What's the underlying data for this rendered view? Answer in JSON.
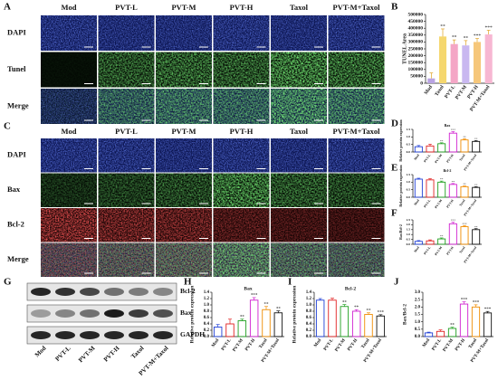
{
  "figure": {
    "panel_labels": [
      "A",
      "B",
      "C",
      "D",
      "E",
      "F",
      "G",
      "H",
      "I",
      "J"
    ],
    "panel_a": {
      "columns": [
        "Mod",
        "PVT-L",
        "PVT-M",
        "PVT-H",
        "Taxol",
        "PVT-M+Taxol"
      ],
      "rows": [
        "DAPI",
        "Tunel",
        "Merge"
      ]
    },
    "panel_c": {
      "columns": [
        "Mod",
        "PVT-L",
        "PVT-M",
        "PVT-H",
        "Taxol",
        "PVT-M+Taxol"
      ],
      "rows": [
        "DAPI",
        "Bax",
        "Bcl-2",
        "Merge"
      ]
    },
    "panel_g": {
      "bands": [
        "Bcl-2",
        "Bax",
        "GAPDH"
      ],
      "lanes": [
        "Mod",
        "PVT-L",
        "PVT-M",
        "PVT-H",
        "Taxol",
        "PVT-M+Taxol"
      ]
    }
  },
  "chart_data": [
    {
      "type": "bar",
      "y_label": "TUNEL Area",
      "filled": true,
      "categories": [
        "Mod",
        "Taxol",
        "PVT-L",
        "PVT-M",
        "PVT-H",
        "PVT-M+Taxol"
      ],
      "values": [
        35000,
        340000,
        285000,
        275000,
        300000,
        355000
      ],
      "errors": [
        40000,
        55000,
        30000,
        35000,
        25000,
        30000
      ],
      "significance": [
        null,
        "**",
        "**",
        "**",
        "***",
        "***"
      ],
      "colors": [
        "#b9a3e3",
        "#f5d76e",
        "#f4a6c6",
        "#c9b8f0",
        "#f6c77a",
        "#f7b7d2"
      ],
      "ylim": [
        0,
        500000
      ],
      "yticks": [
        0,
        50000,
        100000,
        150000,
        200000,
        250000,
        300000,
        350000,
        400000,
        450000,
        500000
      ]
    },
    {
      "type": "bar",
      "title": "Bax",
      "y_label": "Relative protein expression",
      "filled": false,
      "categories": [
        "Mod",
        "PVT-L",
        "PVT-M",
        "PVT-H",
        "Taxol",
        "PVT-M+Taxol"
      ],
      "values": [
        0.35,
        0.4,
        0.55,
        1.25,
        0.8,
        0.7
      ],
      "errors": [
        0.08,
        0.12,
        0.06,
        0.1,
        0.08,
        0.06
      ],
      "significance": [
        null,
        null,
        "**",
        "***",
        "**",
        "**"
      ],
      "colors": [
        "#1f3fd6",
        "#e02020",
        "#20a020",
        "#d020d0",
        "#f08c00",
        "#111111"
      ],
      "ylim": [
        0,
        1.5
      ],
      "yticks": [
        {
          "value": 0,
          "label": "0.0"
        },
        0.5,
        {
          "value": 1,
          "label": "1.0"
        },
        1.5
      ]
    },
    {
      "type": "bar",
      "title": "Bcl-2",
      "y_label": "Relative protein expression",
      "filled": false,
      "categories": [
        "Mod",
        "PVT-L",
        "PVT-M",
        "PVT-H",
        "Taxol",
        "PVT-M+Taxol"
      ],
      "values": [
        1.2,
        1.15,
        1.0,
        0.85,
        0.7,
        0.65
      ],
      "errors": [
        0.06,
        0.08,
        0.07,
        0.06,
        0.05,
        0.05
      ],
      "significance": [
        null,
        null,
        "**",
        "**",
        "**",
        "**"
      ],
      "colors": [
        "#1f3fd6",
        "#e02020",
        "#20a020",
        "#d020d0",
        "#f08c00",
        "#111111"
      ],
      "ylim": [
        0,
        1.5
      ],
      "yticks": [
        {
          "value": 0,
          "label": "0.0"
        },
        0.5,
        {
          "value": 1,
          "label": "1.0"
        },
        1.5
      ]
    },
    {
      "type": "bar",
      "y_label": "Bax/Bcl-2",
      "filled": false,
      "categories": [
        "Mod",
        "PVT-L",
        "PVT-M",
        "PVT-H",
        "Taxol",
        "PVT-M+Taxol"
      ],
      "values": [
        0.3,
        0.35,
        0.55,
        2.1,
        1.8,
        1.5
      ],
      "errors": [
        0.08,
        0.1,
        0.1,
        0.15,
        0.12,
        0.1
      ],
      "significance": [
        null,
        null,
        "**",
        "***",
        "***",
        "**"
      ],
      "colors": [
        "#1f3fd6",
        "#e02020",
        "#20a020",
        "#d020d0",
        "#f08c00",
        "#111111"
      ],
      "ylim": [
        0,
        2.5
      ],
      "yticks": [
        {
          "value": 0,
          "label": "0.0"
        },
        0.5,
        {
          "value": 1,
          "label": "1.0"
        },
        1.5,
        {
          "value": 2,
          "label": "2.0"
        },
        2.5
      ]
    },
    {
      "type": "bar",
      "title": "Bax",
      "y_label": "Relative protein expression",
      "filled": false,
      "categories": [
        "Mod",
        "PVT-L",
        "PVT-M",
        "PVT-H",
        "Taxol",
        "PVT-M+Taxol"
      ],
      "values": [
        0.3,
        0.4,
        0.5,
        1.15,
        0.85,
        0.75
      ],
      "errors": [
        0.08,
        0.15,
        0.05,
        0.08,
        0.1,
        0.06
      ],
      "significance": [
        null,
        null,
        "**",
        "***",
        "**",
        "**"
      ],
      "colors": [
        "#1f3fd6",
        "#e02020",
        "#20a020",
        "#d020d0",
        "#f08c00",
        "#111111"
      ],
      "ylim": [
        0,
        1.4
      ],
      "yticks": [
        {
          "value": 0,
          "label": "0.0"
        },
        0.2,
        0.4,
        0.6,
        0.8,
        {
          "value": 1,
          "label": "1.0"
        },
        1.2,
        1.4
      ]
    },
    {
      "type": "bar",
      "title": "Bcl-2",
      "y_label": "Relative protein expression",
      "filled": false,
      "categories": [
        "Mod",
        "PVT-L",
        "PVT-M",
        "PVT-H",
        "Taxol",
        "PVT-M+Taxol"
      ],
      "values": [
        1.15,
        1.15,
        0.95,
        0.8,
        0.7,
        0.65
      ],
      "errors": [
        0.05,
        0.06,
        0.06,
        0.05,
        0.05,
        0.04
      ],
      "significance": [
        null,
        null,
        "**",
        "**",
        "**",
        "***"
      ],
      "colors": [
        "#1f3fd6",
        "#e02020",
        "#20a020",
        "#d020d0",
        "#f08c00",
        "#111111"
      ],
      "ylim": [
        0,
        1.4
      ],
      "yticks": [
        {
          "value": 0,
          "label": "0.0"
        },
        0.2,
        0.4,
        0.6,
        0.8,
        {
          "value": 1,
          "label": "1.0"
        },
        1.2,
        1.4
      ]
    },
    {
      "type": "bar",
      "y_label": "Bax/Bcl-2",
      "filled": false,
      "categories": [
        "Mod",
        "PVT-L",
        "PVT-M",
        "PVT-H",
        "Taxol",
        "PVT-M+Taxol"
      ],
      "values": [
        0.25,
        0.35,
        0.55,
        2.2,
        2.0,
        1.6
      ],
      "errors": [
        0.05,
        0.1,
        0.08,
        0.15,
        0.15,
        0.1
      ],
      "significance": [
        null,
        null,
        "**",
        "***",
        "***",
        "***"
      ],
      "colors": [
        "#1f3fd6",
        "#e02020",
        "#20a020",
        "#d020d0",
        "#f08c00",
        "#111111"
      ],
      "ylim": [
        0,
        3
      ],
      "yticks": [
        {
          "value": 0,
          "label": "0.0"
        },
        0.5,
        {
          "value": 1,
          "label": "1.0"
        },
        1.5,
        {
          "value": 2,
          "label": "2.0"
        },
        2.5,
        {
          "value": 3,
          "label": "3.0"
        }
      ]
    }
  ]
}
